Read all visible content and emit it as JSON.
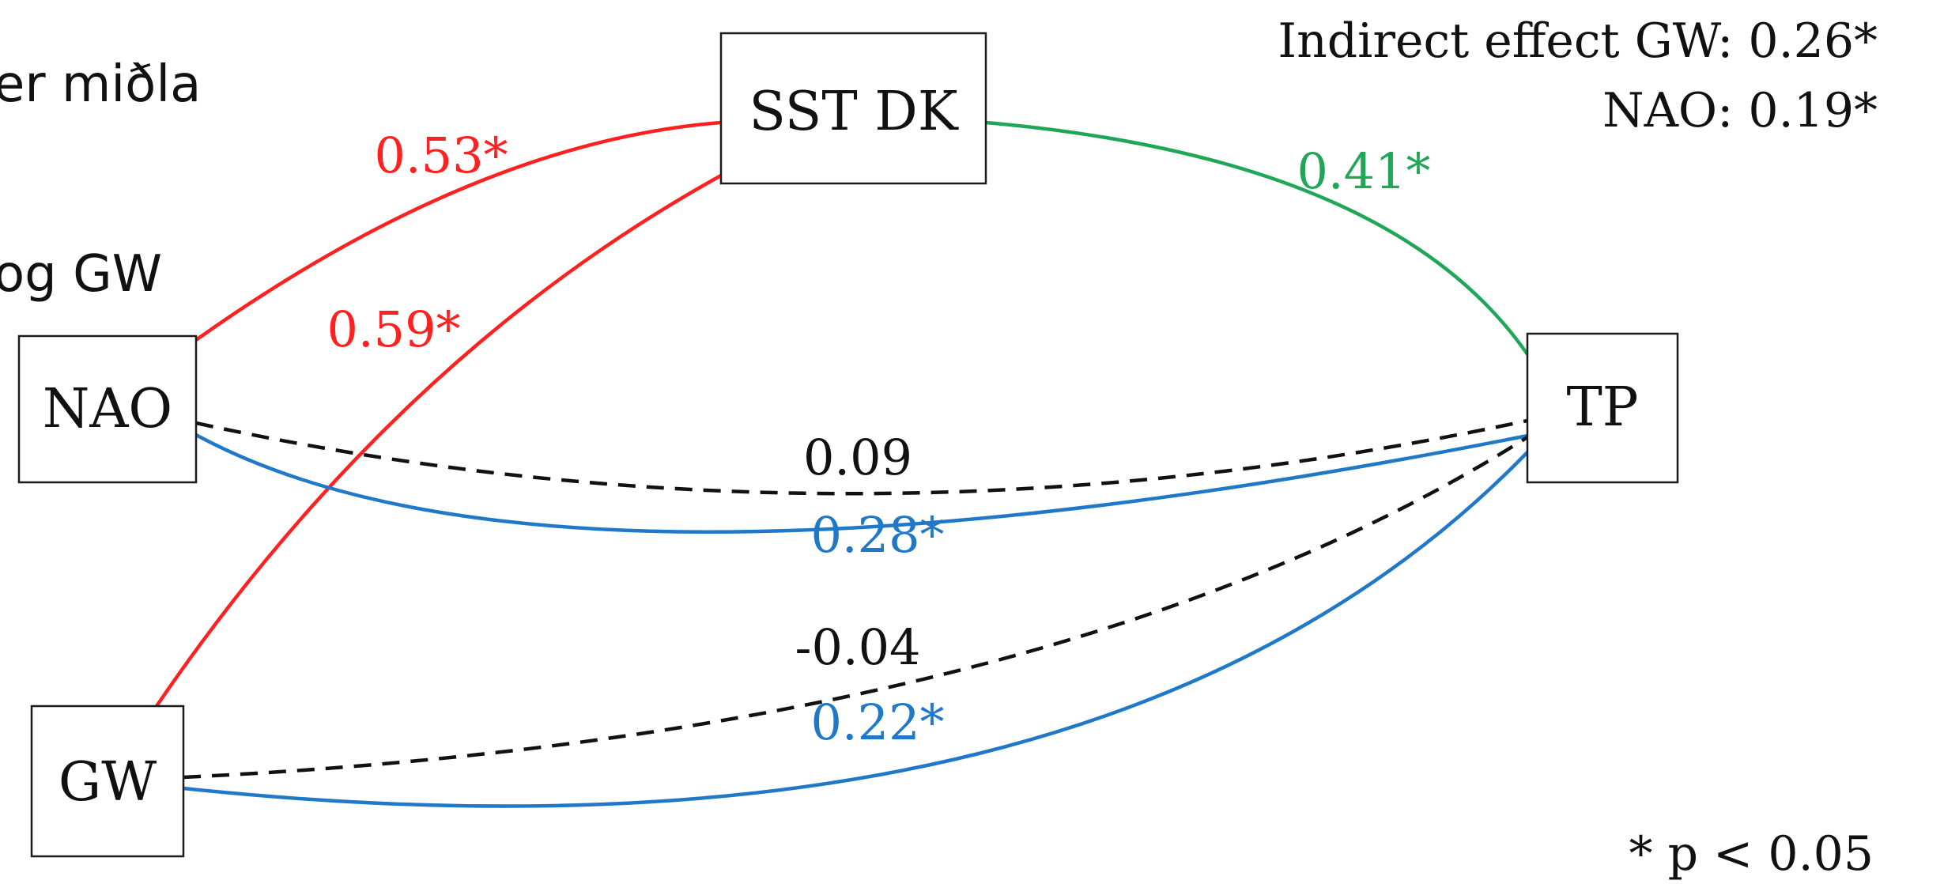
{
  "background_text": {
    "line1": "er miðla",
    "line2": "og GW"
  },
  "nodes": {
    "sst_dk": "SST DK",
    "nao": "NAO",
    "gw": "GW",
    "tp": "TP"
  },
  "edges": {
    "nao_sst": {
      "value": "0.53*",
      "color": "#ff2020",
      "style": "solid"
    },
    "gw_sst": {
      "value": "0.59*",
      "color": "#ff2020",
      "style": "solid"
    },
    "sst_tp": {
      "value": "0.41*",
      "color": "#1fa657",
      "style": "solid"
    },
    "nao_tp_direct": {
      "value": "0.09",
      "color": "#111111",
      "style": "dashed"
    },
    "nao_tp_total": {
      "value": "0.28*",
      "color": "#1f78c8",
      "style": "solid"
    },
    "gw_tp_direct": {
      "value": "-0.04",
      "color": "#111111",
      "style": "dashed"
    },
    "gw_tp_total": {
      "value": "0.22*",
      "color": "#1f78c8",
      "style": "solid"
    }
  },
  "indirect_effect": {
    "gw_line": "Indirect effect GW: 0.26*",
    "nao_line": "NAO: 0.19*"
  },
  "significance_note": "* p < 0.05",
  "colors": {
    "red": "#ff2020",
    "green": "#1fa657",
    "blue": "#1f78c8",
    "black": "#111111"
  }
}
